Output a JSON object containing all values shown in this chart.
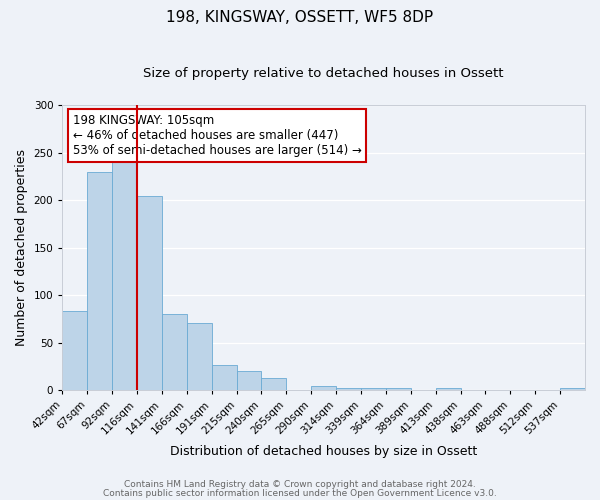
{
  "title": "198, KINGSWAY, OSSETT, WF5 8DP",
  "subtitle": "Size of property relative to detached houses in Ossett",
  "xlabel": "Distribution of detached houses by size in Ossett",
  "ylabel": "Number of detached properties",
  "bin_labels": [
    "42sqm",
    "67sqm",
    "92sqm",
    "116sqm",
    "141sqm",
    "166sqm",
    "191sqm",
    "215sqm",
    "240sqm",
    "265sqm",
    "290sqm",
    "314sqm",
    "339sqm",
    "364sqm",
    "389sqm",
    "413sqm",
    "438sqm",
    "463sqm",
    "488sqm",
    "512sqm",
    "537sqm"
  ],
  "bar_values": [
    83,
    230,
    240,
    204,
    80,
    71,
    27,
    20,
    13,
    0,
    4,
    2,
    2,
    2,
    0,
    2,
    0,
    0,
    0,
    0,
    2
  ],
  "bar_color": "#bdd4e8",
  "bar_edgecolor": "#6aaad4",
  "vline_x": 3,
  "vline_color": "#cc0000",
  "ylim": [
    0,
    300
  ],
  "yticks": [
    0,
    50,
    100,
    150,
    200,
    250,
    300
  ],
  "annotation_box_text": "198 KINGSWAY: 105sqm\n← 46% of detached houses are smaller (447)\n53% of semi-detached houses are larger (514) →",
  "annotation_box_edgecolor": "#cc0000",
  "annotation_box_facecolor": "#ffffff",
  "footer_line1": "Contains HM Land Registry data © Crown copyright and database right 2024.",
  "footer_line2": "Contains public sector information licensed under the Open Government Licence v3.0.",
  "bg_color": "#eef2f8",
  "title_fontsize": 11,
  "subtitle_fontsize": 9.5,
  "axis_label_fontsize": 9,
  "tick_fontsize": 7.5,
  "annotation_fontsize": 8.5,
  "footer_fontsize": 6.5
}
